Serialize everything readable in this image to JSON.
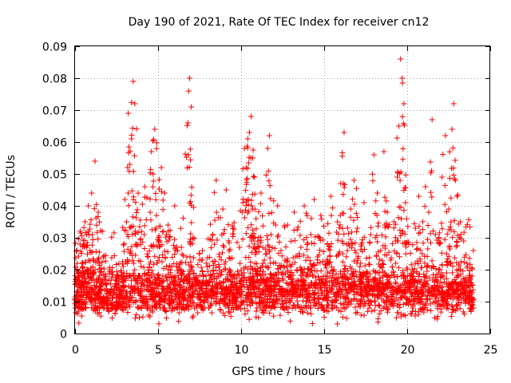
{
  "chart_data": {
    "type": "scatter",
    "title": "Day 190 of 2021, Rate Of TEC Index for receiver cn12",
    "xlabel": "GPS time / hours",
    "ylabel": "ROTI / TECUs",
    "xlim": [
      0,
      25
    ],
    "ylim": [
      0,
      0.09
    ],
    "xticks": [
      0,
      5,
      10,
      15,
      20,
      25
    ],
    "xtick_labels": [
      "0",
      "5",
      "10",
      "15",
      "20",
      "25"
    ],
    "yticks": [
      0,
      0.01,
      0.02,
      0.03,
      0.04,
      0.05,
      0.06,
      0.07,
      0.08,
      0.09
    ],
    "ytick_labels": [
      "0",
      "0.01",
      "0.02",
      "0.03",
      "0.04",
      "0.05",
      "0.06",
      "0.07",
      "0.08",
      "0.09"
    ],
    "grid": true,
    "marker": "+",
    "color": "#ff0000",
    "series": [
      {
        "name": "ROTI",
        "points": [
          [
            0.1,
            0.013
          ],
          [
            0.2,
            0.018
          ],
          [
            0.3,
            0.028
          ],
          [
            0.4,
            0.022
          ],
          [
            0.5,
            0.012
          ],
          [
            0.6,
            0.035
          ],
          [
            0.7,
            0.031
          ],
          [
            0.8,
            0.04
          ],
          [
            0.9,
            0.026
          ],
          [
            1.0,
            0.044
          ],
          [
            1.1,
            0.019
          ],
          [
            1.2,
            0.054
          ],
          [
            1.3,
            0.016
          ],
          [
            1.4,
            0.038
          ],
          [
            1.5,
            0.011
          ],
          [
            1.7,
            0.024
          ],
          [
            1.9,
            0.014
          ],
          [
            2.1,
            0.02
          ],
          [
            2.3,
            0.009
          ],
          [
            2.5,
            0.017
          ],
          [
            2.7,
            0.012
          ],
          [
            2.9,
            0.021
          ],
          [
            3.0,
            0.042
          ],
          [
            3.1,
            0.035
          ],
          [
            3.2,
            0.069
          ],
          [
            3.3,
            0.053
          ],
          [
            3.4,
            0.061
          ],
          [
            3.5,
            0.079
          ],
          [
            3.6,
            0.072
          ],
          [
            3.7,
            0.028
          ],
          [
            3.8,
            0.044
          ],
          [
            3.9,
            0.018
          ],
          [
            4.0,
            0.032
          ],
          [
            4.2,
            0.046
          ],
          [
            4.4,
            0.024
          ],
          [
            4.6,
            0.057
          ],
          [
            4.7,
            0.05
          ],
          [
            4.8,
            0.064
          ],
          [
            4.9,
            0.037
          ],
          [
            5.0,
            0.015
          ],
          [
            5.1,
            0.029
          ],
          [
            5.2,
            0.052
          ],
          [
            5.3,
            0.008
          ],
          [
            5.4,
            0.044
          ],
          [
            5.5,
            0.021
          ],
          [
            5.6,
            0.034
          ],
          [
            5.8,
            0.013
          ],
          [
            6.0,
            0.04
          ],
          [
            6.2,
            0.019
          ],
          [
            6.4,
            0.027
          ],
          [
            6.6,
            0.011
          ],
          [
            6.8,
            0.066
          ],
          [
            6.9,
            0.08
          ],
          [
            7.0,
            0.071
          ],
          [
            7.1,
            0.03
          ],
          [
            7.3,
            0.018
          ],
          [
            7.5,
            0.025
          ],
          [
            7.7,
            0.01
          ],
          [
            7.9,
            0.022
          ],
          [
            8.1,
            0.016
          ],
          [
            8.3,
            0.031
          ],
          [
            8.5,
            0.048
          ],
          [
            8.7,
            0.024
          ],
          [
            8.9,
            0.039
          ],
          [
            9.1,
            0.045
          ],
          [
            9.3,
            0.02
          ],
          [
            9.5,
            0.033
          ],
          [
            9.7,
            0.014
          ],
          [
            9.9,
            0.027
          ],
          [
            10.1,
            0.041
          ],
          [
            10.2,
            0.058
          ],
          [
            10.3,
            0.052
          ],
          [
            10.4,
            0.061
          ],
          [
            10.5,
            0.063
          ],
          [
            10.6,
            0.068
          ],
          [
            10.7,
            0.055
          ],
          [
            10.8,
            0.049
          ],
          [
            10.9,
            0.036
          ],
          [
            11.0,
            0.029
          ],
          [
            11.2,
            0.044
          ],
          [
            11.4,
            0.023
          ],
          [
            11.6,
            0.058
          ],
          [
            11.7,
            0.062
          ],
          [
            11.8,
            0.031
          ],
          [
            12.0,
            0.017
          ],
          [
            12.2,
            0.04
          ],
          [
            12.4,
            0.026
          ],
          [
            12.6,
            0.012
          ],
          [
            12.8,
            0.034
          ],
          [
            13.0,
            0.021
          ],
          [
            13.2,
            0.038
          ],
          [
            13.4,
            0.015
          ],
          [
            13.6,
            0.027
          ],
          [
            13.8,
            0.04
          ],
          [
            14.0,
            0.019
          ],
          [
            14.2,
            0.031
          ],
          [
            14.4,
            0.042
          ],
          [
            14.6,
            0.024
          ],
          [
            14.8,
            0.037
          ],
          [
            15.0,
            0.012
          ],
          [
            15.2,
            0.028
          ],
          [
            15.4,
            0.043
          ],
          [
            15.6,
            0.02
          ],
          [
            15.8,
            0.035
          ],
          [
            16.0,
            0.047
          ],
          [
            16.2,
            0.063
          ],
          [
            16.4,
            0.026
          ],
          [
            16.6,
            0.039
          ],
          [
            16.8,
            0.048
          ],
          [
            17.0,
            0.033
          ],
          [
            17.2,
            0.022
          ],
          [
            17.4,
            0.041
          ],
          [
            17.6,
            0.017
          ],
          [
            17.8,
            0.031
          ],
          [
            18.0,
            0.056
          ],
          [
            18.2,
            0.044
          ],
          [
            18.4,
            0.026
          ],
          [
            18.6,
            0.057
          ],
          [
            18.8,
            0.038
          ],
          [
            19.0,
            0.023
          ],
          [
            19.2,
            0.035
          ],
          [
            19.4,
            0.049
          ],
          [
            19.5,
            0.065
          ],
          [
            19.6,
            0.086
          ],
          [
            19.7,
            0.08
          ],
          [
            19.8,
            0.072
          ],
          [
            19.9,
            0.041
          ],
          [
            20.1,
            0.028
          ],
          [
            20.3,
            0.018
          ],
          [
            20.5,
            0.033
          ],
          [
            20.7,
            0.043
          ],
          [
            20.9,
            0.025
          ],
          [
            21.1,
            0.046
          ],
          [
            21.3,
            0.038
          ],
          [
            21.5,
            0.067
          ],
          [
            21.7,
            0.031
          ],
          [
            21.9,
            0.02
          ],
          [
            22.1,
            0.049
          ],
          [
            22.3,
            0.062
          ],
          [
            22.5,
            0.039
          ],
          [
            22.7,
            0.064
          ],
          [
            22.8,
            0.072
          ],
          [
            22.9,
            0.048
          ],
          [
            23.0,
            0.043
          ],
          [
            23.2,
            0.035
          ],
          [
            23.4,
            0.029
          ],
          [
            23.6,
            0.022
          ],
          [
            23.8,
            0.016
          ],
          [
            23.9,
            0.011
          ]
        ],
        "baseline_band": [
          0.005,
          0.025
        ],
        "baseline_mean": 0.013
      }
    ]
  }
}
